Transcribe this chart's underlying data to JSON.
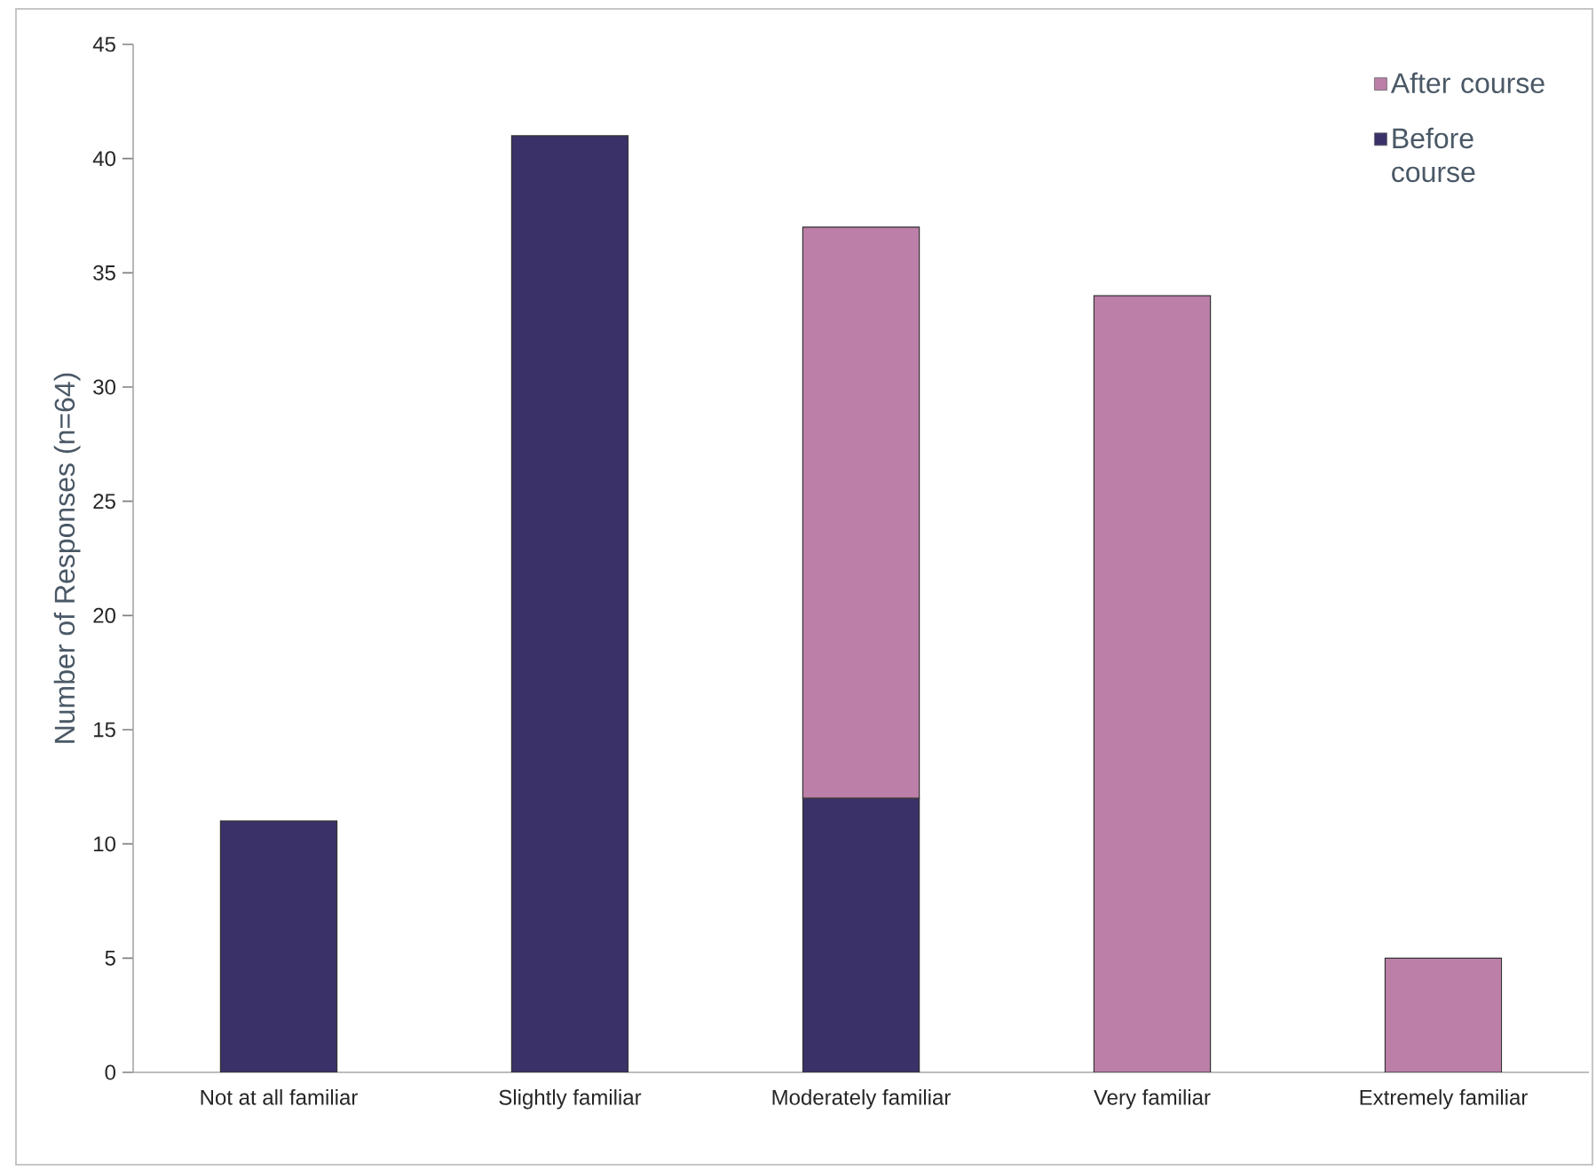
{
  "chart_data": {
    "type": "bar",
    "stacked": true,
    "ylabel": "Number of Responses (n=64)",
    "categories": [
      "Not at all familiar",
      "Slightly familiar",
      "Moderately familiar",
      "Very familiar",
      "Extremely familiar"
    ],
    "series": [
      {
        "name": "Before course",
        "color": "#3a3168",
        "values": [
          11,
          41,
          12,
          null,
          null
        ]
      },
      {
        "name": "After course",
        "color": "#bc7fa8",
        "values": [
          null,
          null,
          25,
          34,
          5
        ]
      }
    ],
    "ylim": [
      0,
      45
    ],
    "yticks": [
      0,
      5,
      10,
      15,
      20,
      25,
      30,
      35,
      40,
      45
    ],
    "legend": "top right"
  }
}
